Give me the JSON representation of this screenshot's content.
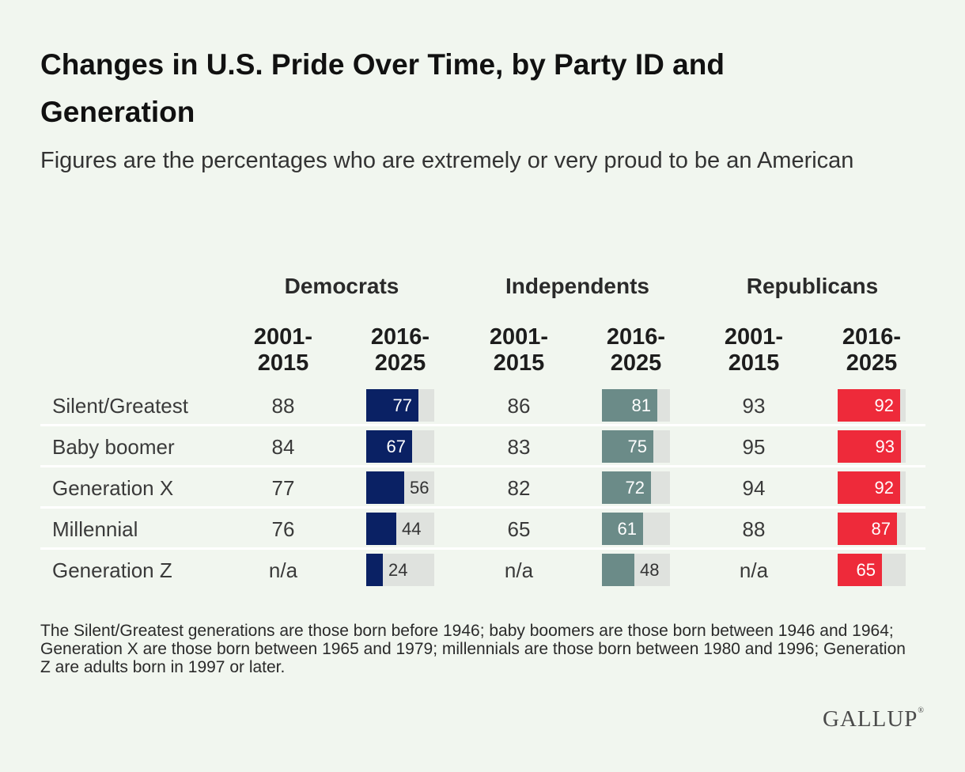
{
  "title": "Changes in U.S. Pride Over Time, by Party ID and Generation",
  "subtitle": "Figures are the percentages who are extremely or very proud to be an American",
  "chart_data": {
    "type": "table",
    "parties": [
      {
        "name": "Democrats",
        "color": "#0a2164"
      },
      {
        "name": "Independents",
        "color": "#6b8b88"
      },
      {
        "name": "Republicans",
        "color": "#ee2a3a"
      }
    ],
    "periods": [
      "2001-\n2015",
      "2016-\n2025"
    ],
    "generations": [
      "Silent/Greatest",
      "Baby boomer",
      "Generation X",
      "Millennial",
      "Generation Z"
    ],
    "values_2001_2015": [
      [
        "88",
        "86",
        "93"
      ],
      [
        "84",
        "83",
        "95"
      ],
      [
        "77",
        "82",
        "94"
      ],
      [
        "76",
        "65",
        "88"
      ],
      [
        "n/a",
        "n/a",
        "n/a"
      ]
    ],
    "values_2016_2025": [
      [
        77,
        81,
        92
      ],
      [
        67,
        75,
        93
      ],
      [
        56,
        72,
        92
      ],
      [
        44,
        61,
        87
      ],
      [
        24,
        48,
        65
      ]
    ],
    "bar_max": 100
  },
  "note": "The Silent/Greatest generations are those born before 1946; baby boomers are those born between 1946 and 1964; Generation X are those born between 1965 and 1979; millennials are those born between 1980 and 1996; Generation Z are adults born in 1997 or later.",
  "brand": {
    "name": "GALLUP",
    "mark": "®"
  }
}
